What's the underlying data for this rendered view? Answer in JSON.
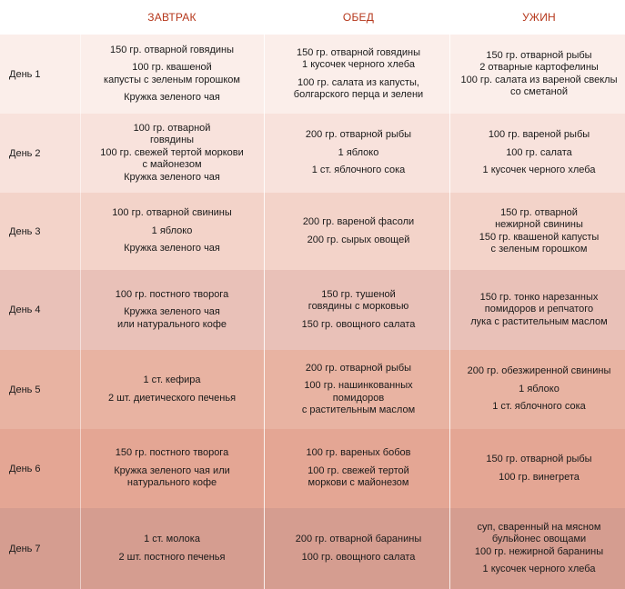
{
  "header": {
    "breakfast": "ЗАВТРАК",
    "lunch": "ОБЕД",
    "dinner": "УЖИН"
  },
  "colors": {
    "header_text": "#b5371b",
    "row_backgrounds": [
      "#fbeeea",
      "#f8e2dc",
      "#f3d3c9",
      "#e9c1b8",
      "#e8b3a2",
      "#e4a694",
      "#d59d90"
    ]
  },
  "days": [
    {
      "label": "День 1",
      "breakfast": [
        "150 гр. отварной говядины",
        "100 гр. квашеной\nкапусты с зеленым горошком",
        "Кружка зеленого чая"
      ],
      "lunch": [
        "150 гр. отварной говядины\n1 кусочек черного хлеба",
        "100 гр. салата из капусты,\nболгарского перца и зелени"
      ],
      "dinner": [
        "150 гр. отварной рыбы\n2 отварные картофелины\n100 гр. салата из вареной свеклы\nсо сметаной"
      ]
    },
    {
      "label": "День 2",
      "breakfast": [
        "100 гр. отварной\nговядины\n100 гр. свежей тертой моркови\nс майонезом\nКружка зеленого чая"
      ],
      "lunch": [
        "200 гр. отварной рыбы",
        "1 яблоко",
        "1 ст. яблочного сока"
      ],
      "dinner": [
        "100 гр. вареной рыбы",
        "100 гр. салата",
        "1 кусочек черного хлеба"
      ]
    },
    {
      "label": "День 3",
      "breakfast": [
        "100 гр. отварной свинины",
        "1 яблоко",
        "Кружка зеленого чая"
      ],
      "lunch": [
        "200 гр. вареной фасоли",
        "200 гр. сырых овощей"
      ],
      "dinner": [
        "150 гр. отварной\nнежирной свинины\n150 гр. квашеной капусты\nс зеленым горошком"
      ]
    },
    {
      "label": "День 4",
      "breakfast": [
        "100 гр. постного творога",
        "Кружка зеленого чая\nили натурального кофе"
      ],
      "lunch": [
        "150 гр. тушеной\nговядины с морковью",
        "150 гр. овощного салата"
      ],
      "dinner": [
        "150 гр. тонко нарезанных\nпомидоров и репчатого\nлука с растительным маслом"
      ]
    },
    {
      "label": "День 5",
      "breakfast": [
        "1 ст. кефира",
        "2 шт. диетического печенья"
      ],
      "lunch": [
        "200 гр. отварной рыбы",
        "100 гр. нашинкованных\nпомидоров\nс растительным маслом"
      ],
      "dinner": [
        "200 гр. обезжиренной свинины",
        "1 яблоко",
        "1 ст. яблочного сока"
      ]
    },
    {
      "label": "День 6",
      "breakfast": [
        "150 гр. постного творога",
        "Кружка зеленого чая или\nнатурального кофе"
      ],
      "lunch": [
        "100 гр. вареных бобов",
        "100 гр. свежей тертой\nморкови с майонезом"
      ],
      "dinner": [
        "150 гр. отварной рыбы",
        "100 гр. винегрета"
      ]
    },
    {
      "label": "День 7",
      "breakfast": [
        "1 ст. молока",
        "2 шт. постного печенья"
      ],
      "lunch": [
        "200 гр. отварной баранины",
        "100 гр. овощного салата"
      ],
      "dinner": [
        "суп, сваренный на мясном\nбульйонес овощами\n100 гр. нежирной баранины",
        "1 кусочек черного хлеба"
      ]
    }
  ]
}
